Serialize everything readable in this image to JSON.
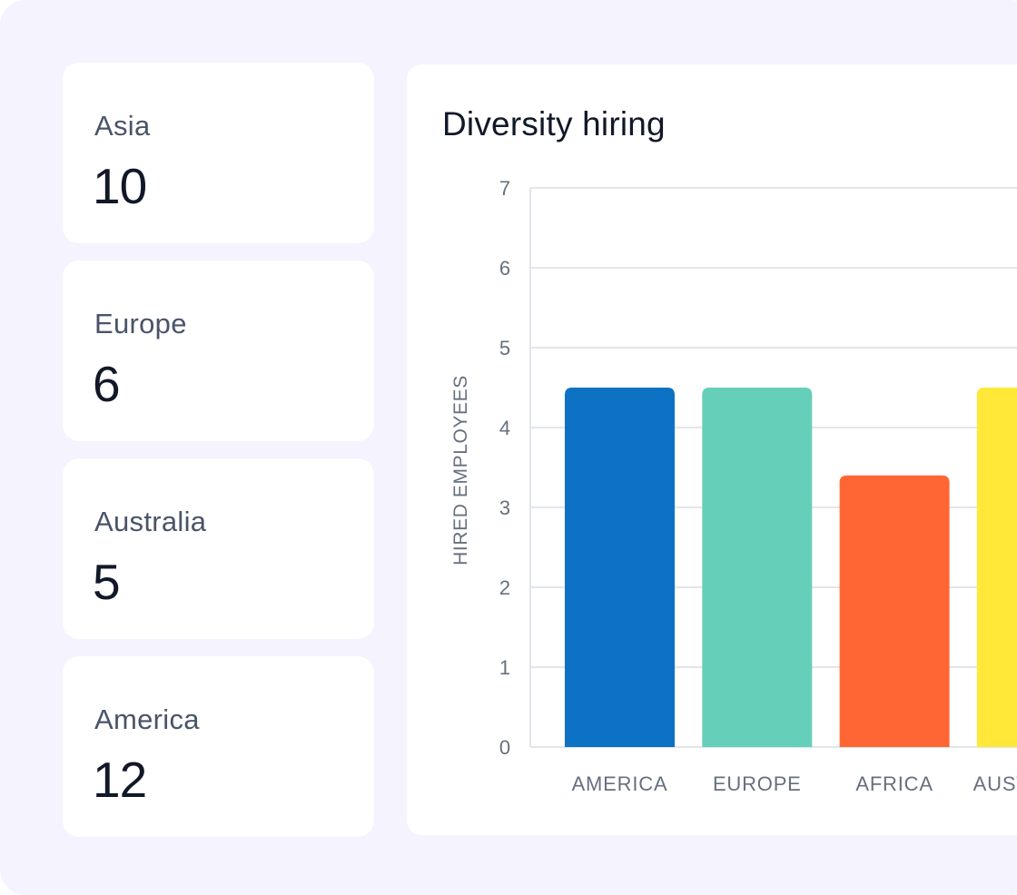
{
  "stats": [
    {
      "label": "Asia",
      "value": "10"
    },
    {
      "label": "Europe",
      "value": "6"
    },
    {
      "label": "Australia",
      "value": "5"
    },
    {
      "label": "America",
      "value": "12"
    }
  ],
  "chart_data": {
    "type": "bar",
    "title": "Diversity hiring",
    "xlabel": "",
    "ylabel": "HIRED EMPLOYEES",
    "ylim": [
      0,
      7
    ],
    "yticks": [
      0,
      1,
      2,
      3,
      4,
      5,
      6,
      7
    ],
    "grid": true,
    "categories": [
      "AMERICA",
      "EUROPE",
      "AFRICA",
      "AUSTRALIA"
    ],
    "values": [
      4.5,
      4.5,
      3.4,
      4.5
    ],
    "colors": [
      "#0d72c4",
      "#66cfba",
      "#ff6633",
      "#ffe838"
    ]
  }
}
